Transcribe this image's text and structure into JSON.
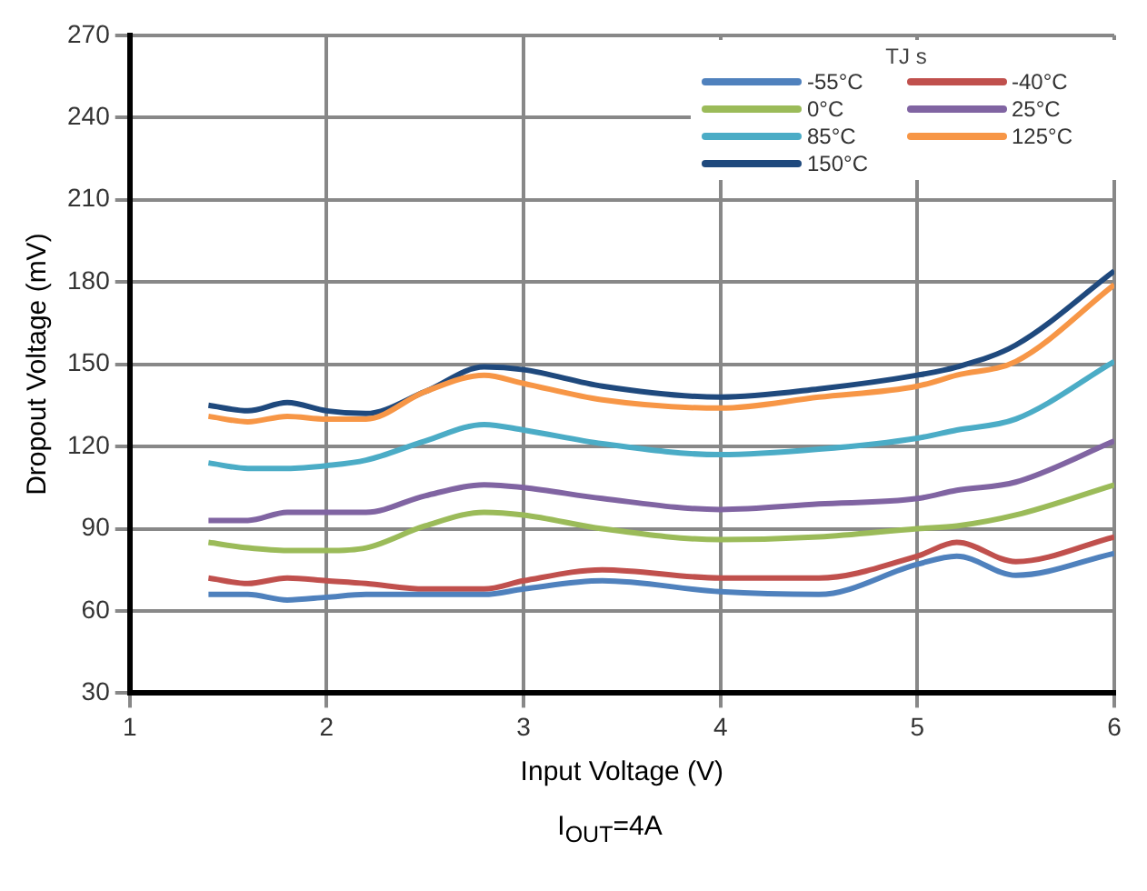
{
  "chart_data": {
    "type": "line",
    "xlabel": "Input Voltage (V)",
    "ylabel": "Dropout Voltage (mV)",
    "legend_title": "TJ s",
    "annotations": [
      "I$_{OUT}$=4A"
    ],
    "x": [
      1.4,
      1.6,
      1.8,
      2.0,
      2.2,
      2.5,
      2.8,
      3.0,
      3.4,
      4.0,
      4.5,
      5.0,
      5.2,
      5.5,
      6.0
    ],
    "series": [
      {
        "name": "-55°C",
        "color": "#4f81bd",
        "values": [
          66,
          66,
          64,
          65,
          66,
          66,
          66,
          68,
          71,
          67,
          66,
          77,
          80,
          73,
          81
        ]
      },
      {
        "name": "-40°C",
        "color": "#c0504d",
        "values": [
          72,
          70,
          72,
          71,
          70,
          68,
          68,
          71,
          75,
          72,
          72,
          80,
          85,
          78,
          87
        ]
      },
      {
        "name": "0°C",
        "color": "#9bbb59",
        "values": [
          85,
          83,
          82,
          82,
          83,
          91,
          96,
          95,
          90,
          86,
          87,
          90,
          91,
          95,
          106
        ]
      },
      {
        "name": "25°C",
        "color": "#8064a2",
        "values": [
          93,
          93,
          96,
          96,
          96,
          102,
          106,
          105,
          101,
          97,
          99,
          101,
          104,
          107,
          122
        ]
      },
      {
        "name": "85°C",
        "color": "#4bacc6",
        "values": [
          114,
          112,
          112,
          113,
          115,
          122,
          128,
          126,
          121,
          117,
          119,
          123,
          126,
          130,
          151
        ]
      },
      {
        "name": "125°C",
        "color": "#f79646",
        "values": [
          131,
          129,
          131,
          130,
          130,
          140,
          146,
          143,
          137,
          134,
          138,
          142,
          146,
          151,
          179
        ]
      },
      {
        "name": "150°C",
        "color": "#1f497d",
        "values": [
          135,
          133,
          136,
          133,
          132,
          140,
          149,
          148,
          142,
          138,
          141,
          146,
          149,
          157,
          184
        ]
      }
    ],
    "xlim": [
      1,
      6
    ],
    "xticks": [
      1,
      2,
      3,
      4,
      5,
      6
    ],
    "ylim": [
      30,
      270
    ],
    "yticks": [
      30,
      60,
      90,
      120,
      150,
      180,
      210,
      240,
      270
    ],
    "grid": true,
    "legend": "top right",
    "marker": "none",
    "line_style": "solid"
  }
}
